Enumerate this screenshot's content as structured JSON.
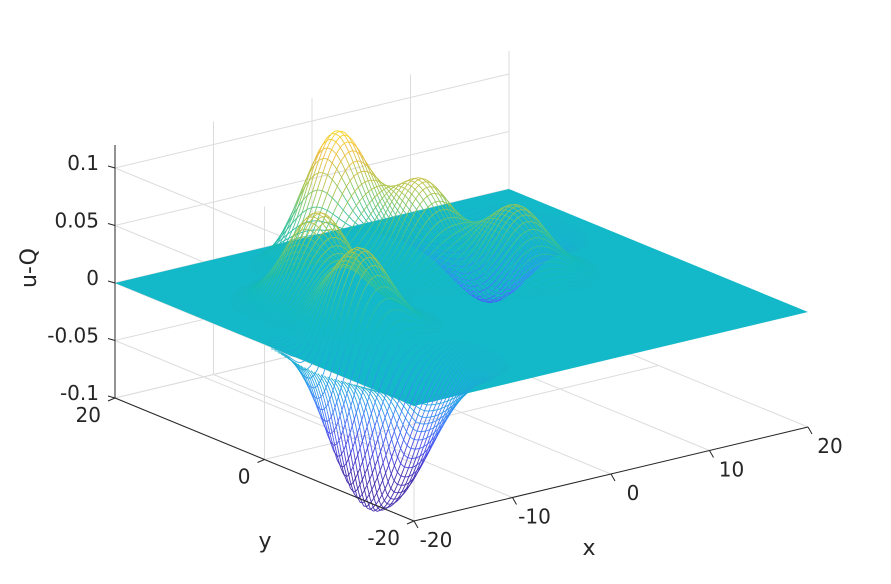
{
  "chart_data": {
    "type": "mesh3d",
    "title": "",
    "xlabel": "x",
    "ylabel": "y",
    "zlabel": "u-Q",
    "xlim": [
      -20,
      20
    ],
    "ylim": [
      -20,
      20
    ],
    "zlim": [
      -0.1,
      0.12
    ],
    "x_ticks": [
      -20,
      -10,
      0,
      10,
      20
    ],
    "x_tick_labels": [
      "-20",
      "-10",
      "0",
      "10",
      "20"
    ],
    "y_ticks": [
      -20,
      0,
      20
    ],
    "y_tick_labels": [
      "-20",
      "0",
      "20"
    ],
    "z_ticks": [
      -0.1,
      -0.05,
      0,
      0.05,
      0.1
    ],
    "z_tick_labels": [
      "-0.1",
      "-0.05",
      "0",
      "0.05",
      "0.1"
    ],
    "grid": true,
    "colormap": "parula",
    "colormap_stops": [
      "#3e26a8",
      "#4746eb",
      "#3f82fd",
      "#1fa6e2",
      "#13bab6",
      "#48c48c",
      "#a6c54a",
      "#f0ba3a",
      "#f9e30e"
    ],
    "flat_color": "#13b9c8",
    "features": [
      {
        "kind": "peak",
        "x": -12,
        "y": -2,
        "z": 0.078
      },
      {
        "kind": "peak",
        "x": -10,
        "y": 6,
        "z": 0.078
      },
      {
        "kind": "peak",
        "x": -2,
        "y": 14,
        "z": 0.11
      },
      {
        "kind": "peak",
        "x": 2,
        "y": 8,
        "z": 0.075
      },
      {
        "kind": "peak",
        "x": 7,
        "y": 2,
        "z": 0.06
      },
      {
        "kind": "trough",
        "x": -18,
        "y": -6,
        "z": -0.095
      },
      {
        "kind": "trough",
        "x": -15,
        "y": -11,
        "z": -0.1
      },
      {
        "kind": "trough",
        "x": 12,
        "y": 12,
        "z": -0.06
      }
    ]
  }
}
